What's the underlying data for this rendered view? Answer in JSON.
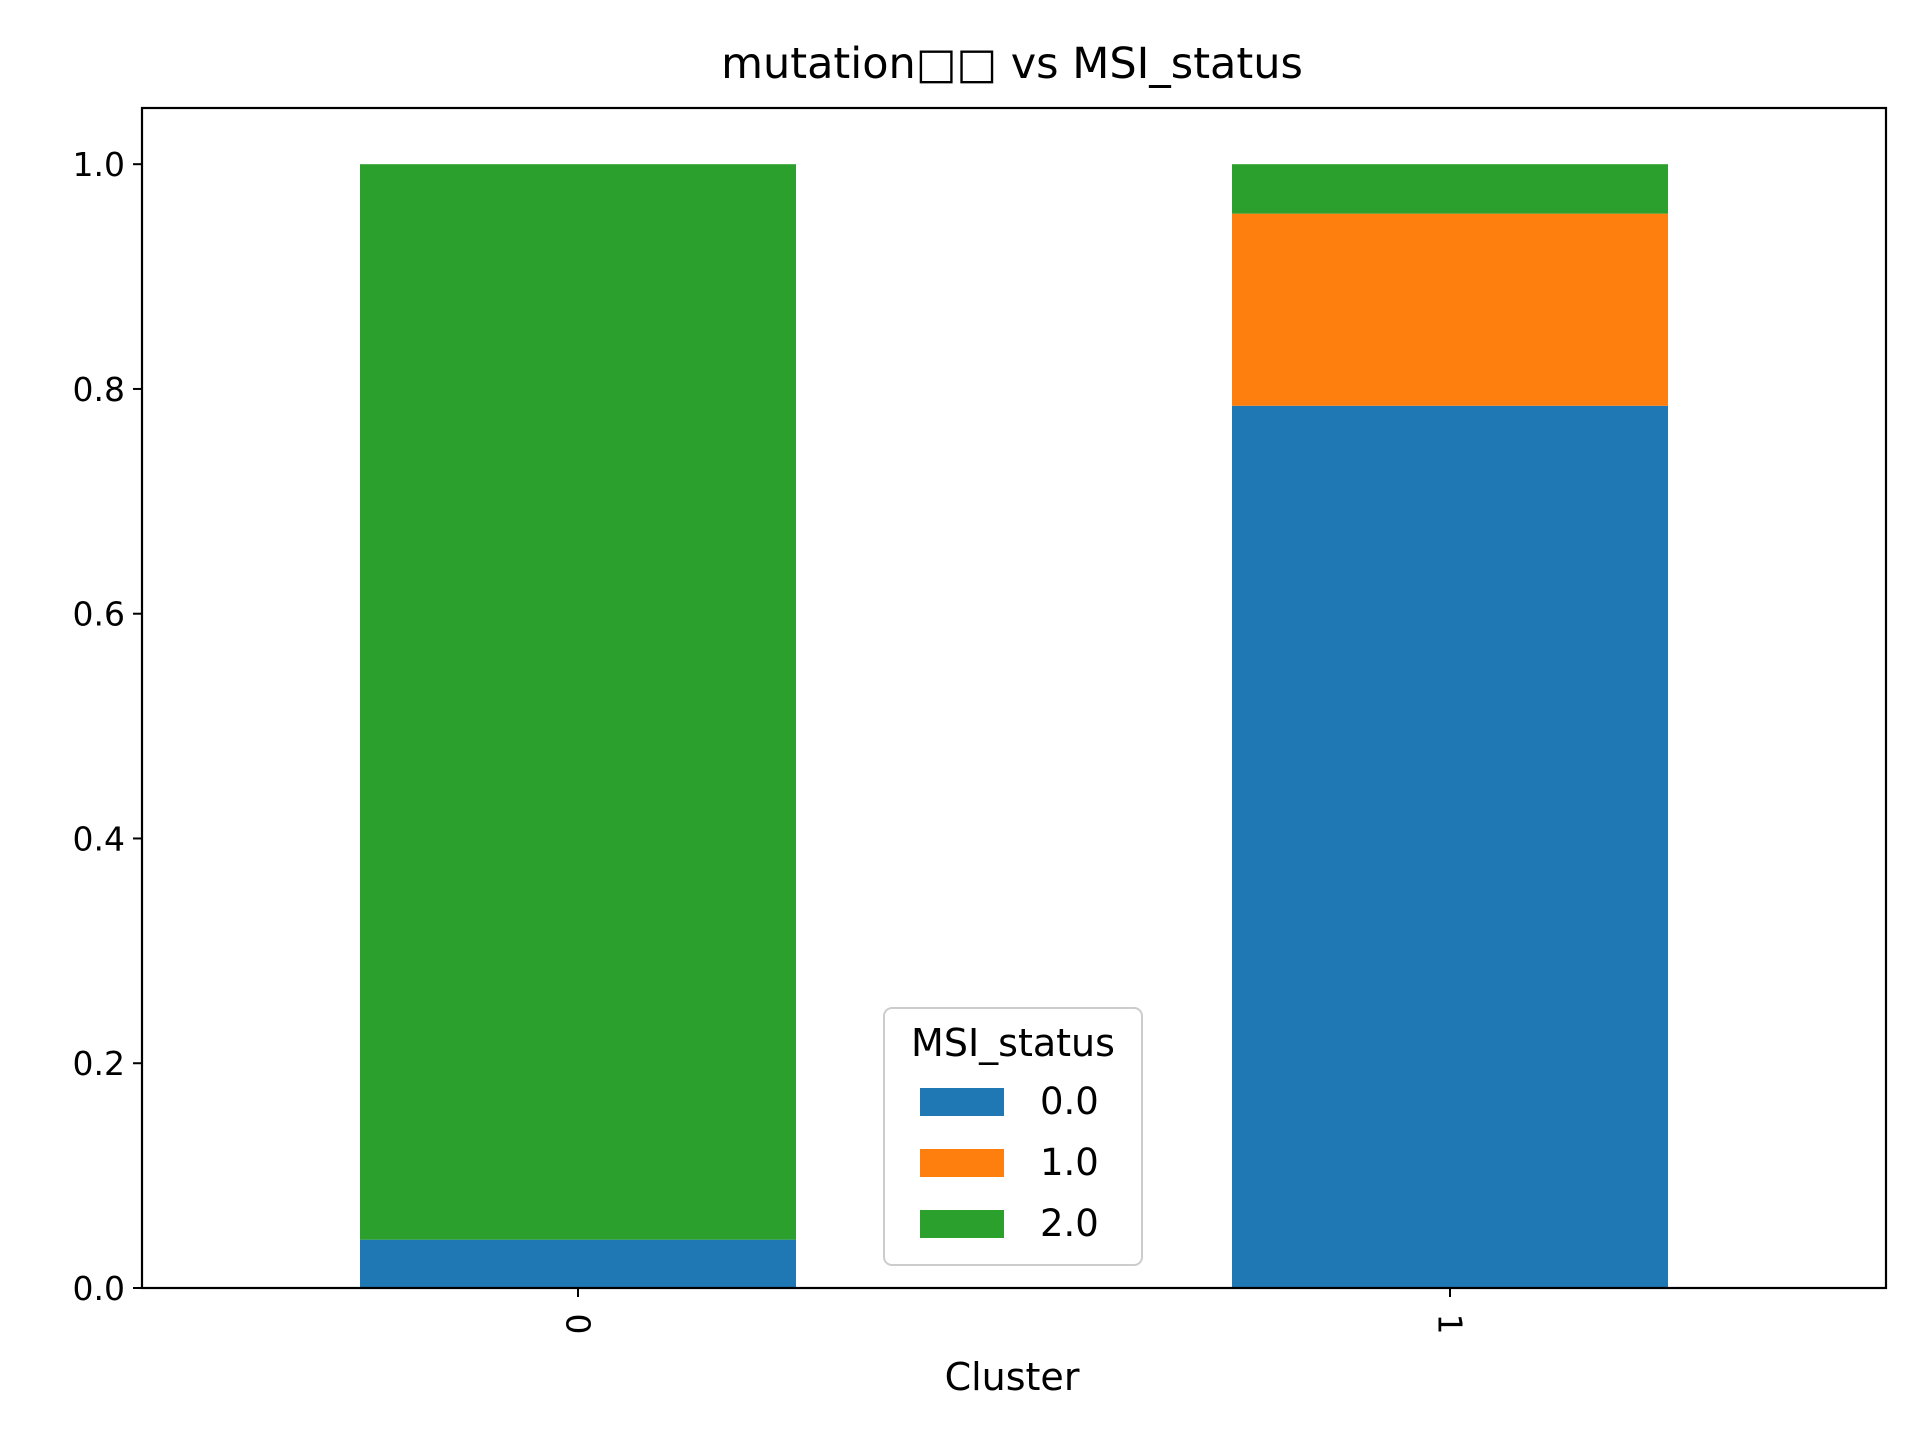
{
  "chart_data": {
    "type": "bar",
    "stacked": true,
    "title": "mutation□□ vs MSI_status",
    "xlabel": "Cluster",
    "ylabel": "",
    "categories": [
      "0",
      "1"
    ],
    "ylim": [
      0,
      1.05
    ],
    "yticks": [
      "0.0",
      "0.2",
      "0.4",
      "0.6",
      "0.8",
      "1.0"
    ],
    "grid": false,
    "legend": {
      "title": "MSI_status",
      "placement": "lower-center"
    },
    "series": [
      {
        "name": "0.0",
        "color": "#1f77b4",
        "values": [
          0.043,
          0.785
        ]
      },
      {
        "name": "1.0",
        "color": "#ff7f0e",
        "values": [
          0.0,
          0.171
        ]
      },
      {
        "name": "2.0",
        "color": "#2ca02c",
        "values": [
          0.957,
          0.044
        ]
      }
    ]
  }
}
